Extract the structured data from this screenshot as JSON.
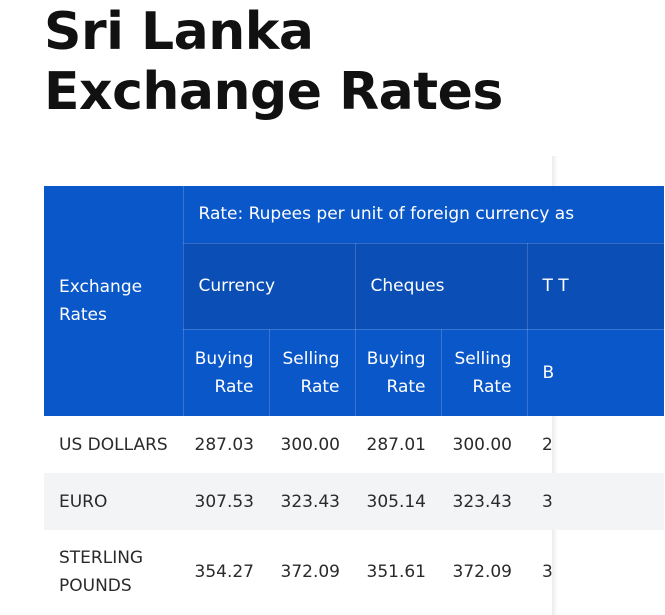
{
  "page": {
    "title": "Sri Lanka Exchange Rates"
  },
  "table": {
    "corner_label": "Exchange Rates",
    "rate_caption": "Rate: Rupees per unit of foreign currency as",
    "groups": [
      "Currency",
      "Cheques",
      "T T"
    ],
    "columns": [
      "Buying Rate",
      "Selling Rate",
      "Buying Rate",
      "Selling Rate",
      "B"
    ],
    "rows": [
      {
        "name": "US DOLLARS",
        "values": [
          "287.03",
          "300.00",
          "287.01",
          "300.00",
          "2"
        ]
      },
      {
        "name": "EURO",
        "values": [
          "307.53",
          "323.43",
          "305.14",
          "323.43",
          "3"
        ]
      },
      {
        "name": "STERLING POUNDS",
        "values": [
          "354.27",
          "372.09",
          "351.61",
          "372.09",
          "3"
        ]
      }
    ]
  }
}
